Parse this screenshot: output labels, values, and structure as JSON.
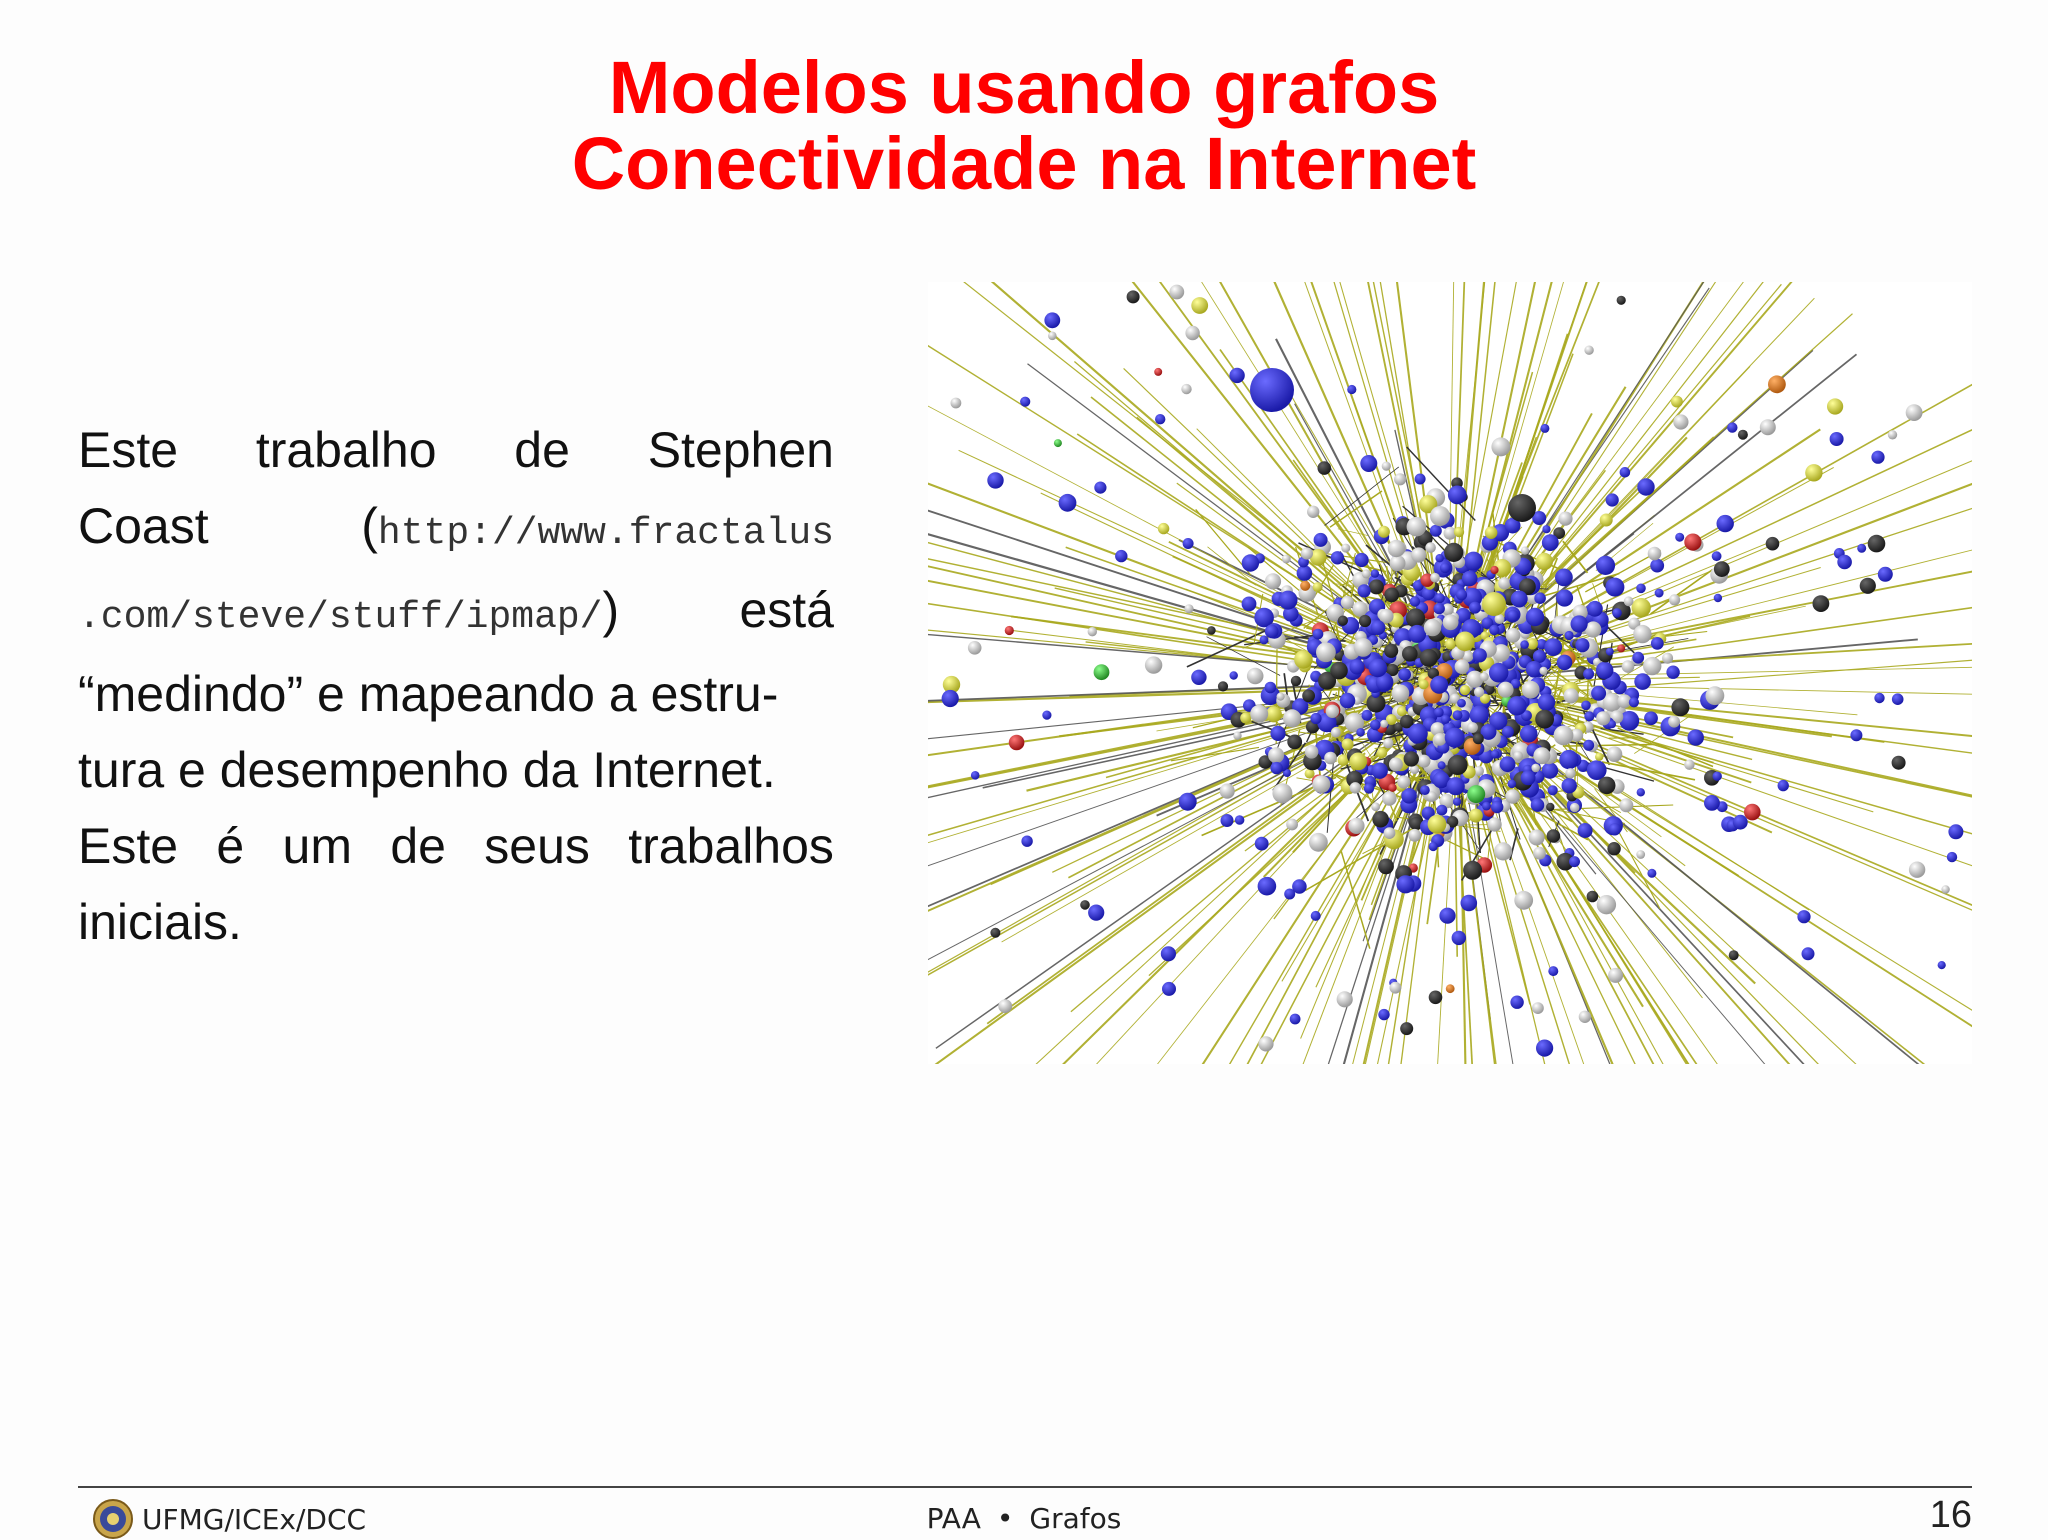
{
  "title": {
    "line1": "Modelos usando grafos",
    "line2": "Conectividade na Internet"
  },
  "body": {
    "line1_words": [
      "Este",
      "trabalho",
      "de",
      "Stephen"
    ],
    "line2_word": "Coast",
    "open_paren": "(",
    "url_part1": "http://www.fractalus",
    "url_part2": ".com/steve/stuff/ipmap/",
    "close_paren": ")",
    "line3_tail": "está",
    "line4": "“medindo” e mapeando a estru-",
    "line5": "tura e desempenho da Internet.",
    "line6_words": [
      "Este",
      "é",
      "um",
      "de",
      "seus",
      "trabalhos"
    ],
    "line7": "iniciais."
  },
  "footer": {
    "left_label": "UFMG/ICEx/DCC",
    "center_left": "PAA",
    "center_bullet": "•",
    "center_right": "Grafos",
    "page_number": "16"
  },
  "colors": {
    "title": "#ff0000",
    "edge": "#a8a81e",
    "node_blue": "#1a1aa8",
    "node_gray": "#c8c8c8",
    "node_black": "#1a1a1a",
    "node_yellow": "#d4d43a",
    "node_red": "#cc1111"
  }
}
